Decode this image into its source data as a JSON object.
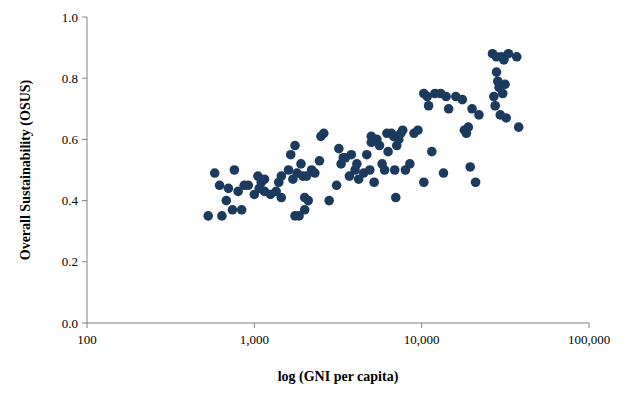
{
  "chart_data": {
    "type": "scatter",
    "x_label": "log (GNI per capita)",
    "y_label": "Overall Sustainability (OSUS)",
    "log": "x",
    "grid": false,
    "color": "#1b3a5e",
    "marker": "circle",
    "xlim": [
      100,
      100000
    ],
    "xticks": [
      100,
      {
        "value": 1000,
        "label": "1,000"
      },
      {
        "value": 10000,
        "label": "10,000"
      },
      {
        "value": 100000,
        "label": "100,000"
      }
    ],
    "ylim": [
      0,
      1
    ],
    "yticks": [
      {
        "value": 0,
        "label": "0.0"
      },
      0.2,
      0.4,
      0.6,
      0.8,
      {
        "value": 1,
        "label": "1.0"
      }
    ],
    "x": [
      530,
      580,
      620,
      640,
      680,
      700,
      740,
      760,
      800,
      840,
      870,
      920,
      1000,
      1050,
      1070,
      1100,
      1150,
      1150,
      1250,
      1350,
      1400,
      1450,
      1450,
      1600,
      1650,
      1700,
      1750,
      1750,
      1800,
      1850,
      1900,
      1950,
      2000,
      2000,
      2050,
      2100,
      2200,
      2300,
      2450,
      2500,
      2600,
      2800,
      3100,
      3200,
      3300,
      3400,
      3500,
      3700,
      3800,
      4000,
      4100,
      4200,
      4500,
      4700,
      4900,
      5000,
      5000,
      5200,
      5400,
      5600,
      5800,
      6000,
      6200,
      6300,
      6600,
      6800,
      6900,
      7000,
      7100,
      7300,
      7500,
      7700,
      8000,
      8500,
      9000,
      9500,
      10300,
      10300,
      10800,
      11000,
      11500,
      12000,
      13000,
      13500,
      14000,
      14500,
      16000,
      17500,
      18000,
      18500,
      19000,
      19500,
      20000,
      21000,
      22000,
      26500,
      27000,
      27500,
      28000,
      28000,
      28500,
      29000,
      29500,
      30000,
      30500,
      31000,
      31500,
      32000,
      33000,
      37000,
      38000
    ],
    "values": [
      0.35,
      0.49,
      0.45,
      0.35,
      0.4,
      0.44,
      0.37,
      0.5,
      0.43,
      0.37,
      0.45,
      0.45,
      0.42,
      0.48,
      0.44,
      0.46,
      0.47,
      0.43,
      0.42,
      0.43,
      0.46,
      0.48,
      0.41,
      0.5,
      0.55,
      0.47,
      0.58,
      0.35,
      0.49,
      0.35,
      0.52,
      0.48,
      0.41,
      0.37,
      0.48,
      0.4,
      0.5,
      0.49,
      0.53,
      0.61,
      0.62,
      0.4,
      0.45,
      0.57,
      0.52,
      0.54,
      0.54,
      0.48,
      0.55,
      0.5,
      0.52,
      0.47,
      0.49,
      0.55,
      0.5,
      0.61,
      0.59,
      0.46,
      0.6,
      0.58,
      0.52,
      0.5,
      0.62,
      0.56,
      0.62,
      0.61,
      0.5,
      0.41,
      0.58,
      0.6,
      0.62,
      0.63,
      0.5,
      0.52,
      0.62,
      0.63,
      0.46,
      0.75,
      0.74,
      0.71,
      0.56,
      0.75,
      0.75,
      0.49,
      0.74,
      0.7,
      0.74,
      0.73,
      0.63,
      0.62,
      0.64,
      0.51,
      0.7,
      0.46,
      0.68,
      0.88,
      0.74,
      0.71,
      0.87,
      0.82,
      0.79,
      0.77,
      0.68,
      0.87,
      0.75,
      0.86,
      0.78,
      0.67,
      0.88,
      0.87,
      0.64
    ]
  }
}
